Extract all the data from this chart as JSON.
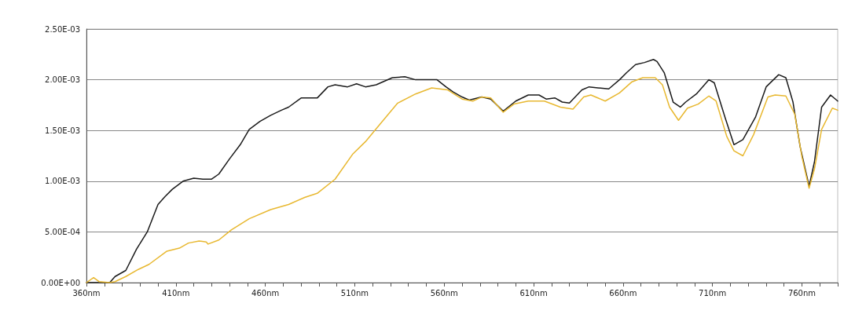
{
  "chart_data": {
    "type": "line",
    "xlim": [
      360,
      780
    ],
    "ylim": [
      0,
      0.0025
    ],
    "xticks": [
      {
        "value": 360,
        "label": "360nm"
      },
      {
        "value": 370,
        "label": null
      },
      {
        "value": 380,
        "label": null
      },
      {
        "value": 390,
        "label": null
      },
      {
        "value": 400,
        "label": null
      },
      {
        "value": 410,
        "label": "410nm"
      },
      {
        "value": 420,
        "label": null
      },
      {
        "value": 430,
        "label": null
      },
      {
        "value": 440,
        "label": null
      },
      {
        "value": 450,
        "label": null
      },
      {
        "value": 460,
        "label": "460nm"
      },
      {
        "value": 470,
        "label": null
      },
      {
        "value": 480,
        "label": null
      },
      {
        "value": 490,
        "label": null
      },
      {
        "value": 500,
        "label": null
      },
      {
        "value": 510,
        "label": "510nm"
      },
      {
        "value": 520,
        "label": null
      },
      {
        "value": 530,
        "label": null
      },
      {
        "value": 540,
        "label": null
      },
      {
        "value": 550,
        "label": null
      },
      {
        "value": 560,
        "label": "560nm"
      },
      {
        "value": 570,
        "label": null
      },
      {
        "value": 580,
        "label": null
      },
      {
        "value": 590,
        "label": null
      },
      {
        "value": 600,
        "label": null
      },
      {
        "value": 610,
        "label": "610nm"
      },
      {
        "value": 620,
        "label": null
      },
      {
        "value": 630,
        "label": null
      },
      {
        "value": 640,
        "label": null
      },
      {
        "value": 650,
        "label": null
      },
      {
        "value": 660,
        "label": "660nm"
      },
      {
        "value": 670,
        "label": null
      },
      {
        "value": 680,
        "label": null
      },
      {
        "value": 690,
        "label": null
      },
      {
        "value": 700,
        "label": null
      },
      {
        "value": 710,
        "label": "710nm"
      },
      {
        "value": 720,
        "label": null
      },
      {
        "value": 730,
        "label": null
      },
      {
        "value": 740,
        "label": null
      },
      {
        "value": 750,
        "label": null
      },
      {
        "value": 760,
        "label": "760nm"
      },
      {
        "value": 770,
        "label": null
      },
      {
        "value": 780,
        "label": null
      }
    ],
    "yticks": [
      {
        "value": 0,
        "label": "0.00E+00"
      },
      {
        "value": 0.0005,
        "label": "5.00E-04"
      },
      {
        "value": 0.001,
        "label": "1.00E-03"
      },
      {
        "value": 0.0015,
        "label": "1.50E-03"
      },
      {
        "value": 0.002,
        "label": "2.00E-03"
      },
      {
        "value": 0.0025,
        "label": "2.50E-03"
      }
    ],
    "grid": "y",
    "marker": "none",
    "line_style": "solid",
    "series": [
      {
        "color": "#1a1a1a",
        "x": [
          360,
          373,
          376,
          382,
          388,
          394,
          400,
          404,
          408,
          414,
          420,
          425,
          430,
          434,
          440,
          446,
          451,
          457,
          463,
          469,
          473,
          480,
          489,
          495,
          499,
          506,
          511,
          516,
          522,
          531,
          538,
          544,
          556,
          561,
          565,
          570,
          574,
          581,
          586,
          593,
          600,
          607,
          613,
          617,
          622,
          626,
          630,
          637,
          641,
          646,
          652,
          658,
          662,
          667,
          672,
          677,
          679,
          683,
          688,
          692,
          695,
          701,
          708,
          711,
          717,
          722,
          727,
          734,
          740,
          747,
          751,
          755,
          759,
          764,
          767,
          771,
          776,
          780
        ],
        "values": [
          0,
          0,
          6e-05,
          0.00012,
          0.00033,
          0.0005,
          0.00077,
          0.00085,
          0.00092,
          0.001,
          0.00103,
          0.00102,
          0.00102,
          0.00107,
          0.00122,
          0.00136,
          0.00151,
          0.00159,
          0.00165,
          0.0017,
          0.00173,
          0.00182,
          0.00182,
          0.00193,
          0.00195,
          0.00193,
          0.00196,
          0.00193,
          0.00195,
          0.00202,
          0.00203,
          0.002,
          0.002,
          0.00193,
          0.00188,
          0.00183,
          0.0018,
          0.00183,
          0.00181,
          0.00169,
          0.00179,
          0.00185,
          0.00185,
          0.00181,
          0.00182,
          0.00178,
          0.00177,
          0.0019,
          0.00193,
          0.00192,
          0.00191,
          0.002,
          0.00207,
          0.00215,
          0.00217,
          0.0022,
          0.00218,
          0.00207,
          0.00178,
          0.00173,
          0.00178,
          0.00186,
          0.002,
          0.00197,
          0.00163,
          0.00136,
          0.00141,
          0.00163,
          0.00193,
          0.00205,
          0.00202,
          0.00178,
          0.00134,
          0.00095,
          0.00119,
          0.00173,
          0.00185,
          0.00179
        ]
      },
      {
        "color": "#e8b830",
        "x": [
          360,
          364,
          367,
          373,
          376,
          382,
          389,
          395,
          405,
          412,
          417,
          423,
          427,
          428,
          434,
          441,
          451,
          463,
          473,
          482,
          489,
          499,
          509,
          516,
          524,
          534,
          544,
          553,
          562,
          570,
          576,
          581,
          586,
          593,
          599,
          607,
          616,
          625,
          632,
          638,
          642,
          650,
          658,
          665,
          671,
          678,
          682,
          686,
          691,
          696,
          702,
          708,
          712,
          718,
          722,
          727,
          733,
          741,
          745,
          751,
          756,
          760,
          764,
          767,
          771,
          777,
          780
        ],
        "values": [
          0,
          5e-05,
          1e-05,
          0,
          1e-05,
          6e-05,
          0.00013,
          0.00018,
          0.00031,
          0.00034,
          0.00039,
          0.00041,
          0.0004,
          0.00038,
          0.00042,
          0.00052,
          0.00063,
          0.00072,
          0.00077,
          0.00084,
          0.00088,
          0.00102,
          0.00127,
          0.00139,
          0.00156,
          0.00177,
          0.00186,
          0.00192,
          0.0019,
          0.00181,
          0.00179,
          0.00183,
          0.00182,
          0.00168,
          0.00176,
          0.00179,
          0.00179,
          0.00173,
          0.00171,
          0.00183,
          0.00185,
          0.00179,
          0.00187,
          0.00198,
          0.00202,
          0.00202,
          0.00195,
          0.00173,
          0.0016,
          0.00172,
          0.00176,
          0.00184,
          0.00179,
          0.00144,
          0.0013,
          0.00125,
          0.00146,
          0.00183,
          0.00185,
          0.00184,
          0.00166,
          0.00124,
          0.00093,
          0.00112,
          0.00151,
          0.00172,
          0.0017
        ]
      }
    ]
  }
}
